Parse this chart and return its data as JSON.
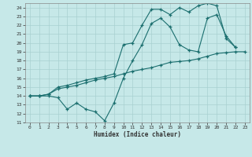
{
  "xlabel": "Humidex (Indice chaleur)",
  "bg_color": "#c6e8e8",
  "grid_color": "#a8d0d0",
  "line_color": "#1a6e6e",
  "xlim": [
    -0.5,
    23.5
  ],
  "ylim": [
    11,
    24.5
  ],
  "xticks": [
    0,
    1,
    2,
    3,
    4,
    5,
    6,
    7,
    8,
    9,
    10,
    11,
    12,
    13,
    14,
    15,
    16,
    17,
    18,
    19,
    20,
    21,
    22,
    23
  ],
  "yticks": [
    11,
    12,
    13,
    14,
    15,
    16,
    17,
    18,
    19,
    20,
    21,
    22,
    23,
    24
  ],
  "series": [
    [
      14.0,
      14.0,
      14.0,
      13.8,
      12.5,
      13.2,
      12.5,
      12.2,
      11.2,
      13.2,
      16.0,
      18.0,
      19.8,
      22.2,
      22.8,
      21.8,
      19.8,
      19.2,
      19.0,
      22.8,
      23.2,
      20.8,
      19.5,
      null
    ],
    [
      14.0,
      14.0,
      14.2,
      14.8,
      15.0,
      15.2,
      15.5,
      15.8,
      16.0,
      16.2,
      16.5,
      16.8,
      17.0,
      17.2,
      17.5,
      17.8,
      17.9,
      18.0,
      18.2,
      18.5,
      18.8,
      18.9,
      19.0,
      19.0
    ],
    [
      14.0,
      14.0,
      14.2,
      15.0,
      15.2,
      15.5,
      15.8,
      16.0,
      16.2,
      16.5,
      19.8,
      20.0,
      22.0,
      23.8,
      23.8,
      23.2,
      24.0,
      23.5,
      24.2,
      24.5,
      24.2,
      20.5,
      19.5,
      null
    ]
  ]
}
